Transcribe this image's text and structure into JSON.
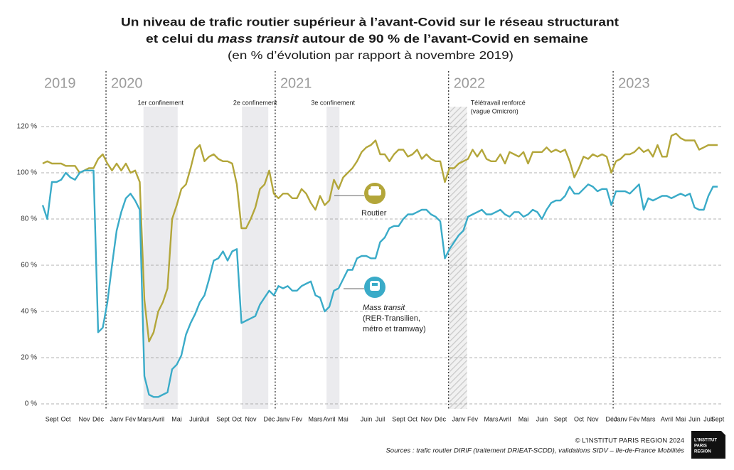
{
  "chart_data": {
    "type": "line",
    "title": "Un niveau de trafic routier supérieur à l’avant-Covid sur le réseau structurant",
    "title_line2": [
      "et celui du ",
      "mass transit",
      " autour de 90 % de l’avant-Covid en semaine"
    ],
    "subtitle": "(en % d’évolution par rapport à novembre 2019)",
    "categories": [
      null,
      null,
      "Sept",
      null,
      null,
      "Oct",
      null,
      null,
      null,
      "Nov",
      null,
      null,
      "Déc",
      null,
      null,
      null,
      "Janv",
      null,
      null,
      "Fév",
      null,
      null,
      "Mars",
      null,
      null,
      "Avril",
      null,
      null,
      null,
      "Mai",
      null,
      null,
      null,
      "Juin",
      null,
      "Juil",
      null,
      null,
      null,
      "Sept",
      null,
      null,
      "Oct",
      null,
      null,
      "Nov",
      null,
      null,
      null,
      "Déc",
      null,
      null,
      "Janv",
      null,
      null,
      "Fév",
      null,
      null,
      null,
      "Mars",
      null,
      null,
      "Avril",
      null,
      null,
      "Mai",
      null,
      null,
      null,
      null,
      "Juin",
      null,
      null,
      "Juil",
      null,
      null,
      null,
      "Sept",
      null,
      null,
      "Oct",
      null,
      null,
      "Nov",
      null,
      null,
      "Déc",
      null,
      null,
      null,
      "Janv",
      null,
      null,
      "Fév",
      null,
      null,
      null,
      "Mars",
      null,
      null,
      "Avril",
      null,
      null,
      null,
      "Mai",
      null,
      null,
      null,
      "Juin",
      null,
      null,
      null,
      "Sept",
      null,
      null,
      null,
      "Oct",
      null,
      null,
      "Nov",
      null,
      null,
      null,
      "Déc",
      null,
      "Janv",
      null,
      null,
      "Fév",
      null,
      null,
      "Mars",
      null,
      null,
      null,
      "Avril",
      null,
      null,
      "Mai",
      null,
      null,
      "Juin",
      null,
      null,
      "Juil",
      null,
      "Sept"
    ],
    "series": [
      {
        "name": "Routier",
        "color": "#b3a63a",
        "values": [
          104,
          105,
          104,
          104,
          104,
          103,
          103,
          103,
          100,
          101,
          102,
          102,
          106,
          108,
          104,
          101,
          104,
          101,
          104,
          100,
          101,
          96,
          45,
          27,
          31,
          40,
          44,
          50,
          80,
          86,
          93,
          95,
          102,
          110,
          112,
          105,
          107,
          108,
          106,
          105,
          105,
          104,
          95,
          76,
          76,
          80,
          85,
          93,
          95,
          101,
          91,
          89,
          91,
          91,
          89,
          89,
          93,
          91,
          87,
          84,
          90,
          86,
          88,
          97,
          93,
          98,
          100,
          102,
          105,
          109,
          111,
          112,
          114,
          108,
          108,
          105,
          108,
          110,
          110,
          107,
          108,
          110,
          106,
          108,
          106,
          105,
          105,
          96,
          102,
          102,
          104,
          105,
          106,
          110,
          107,
          110,
          106,
          105,
          105,
          108,
          104,
          109,
          108,
          107,
          109,
          104,
          109,
          109,
          109,
          111,
          109,
          110,
          109,
          110,
          105,
          98,
          102,
          107,
          106,
          108,
          107,
          108,
          107,
          100,
          105,
          106,
          108,
          108,
          109,
          111,
          109,
          110,
          107,
          112,
          107,
          107,
          116,
          117,
          115,
          114,
          114,
          114,
          110,
          111,
          112,
          112,
          112
        ]
      },
      {
        "name": "Mass transit",
        "description": [
          "(RER-Transilien,",
          "métro et tramway)"
        ],
        "color": "#3aabc8",
        "values": [
          86,
          80,
          96,
          96,
          97,
          100,
          98,
          97,
          100,
          101,
          101,
          101,
          31,
          33,
          44,
          60,
          75,
          83,
          89,
          91,
          88,
          84,
          12,
          4,
          3,
          3,
          4,
          5,
          15,
          17,
          21,
          30,
          35,
          39,
          44,
          47,
          54,
          62,
          63,
          66,
          62,
          66,
          67,
          35,
          36,
          37,
          38,
          43,
          46,
          49,
          47,
          51,
          50,
          51,
          49,
          49,
          51,
          52,
          53,
          47,
          46,
          40,
          42,
          49,
          50,
          54,
          58,
          58,
          63,
          64,
          64,
          63,
          63,
          70,
          72,
          76,
          77,
          77,
          80,
          82,
          82,
          83,
          84,
          84,
          82,
          81,
          79,
          63,
          67,
          70,
          73,
          75,
          81,
          82,
          83,
          84,
          82,
          82,
          83,
          84,
          82,
          81,
          83,
          83,
          81,
          82,
          84,
          83,
          80,
          84,
          87,
          88,
          88,
          90,
          94,
          91,
          91,
          93,
          95,
          94,
          92,
          93,
          93,
          86,
          92,
          92,
          92,
          91,
          93,
          95,
          84,
          89,
          88,
          89,
          90,
          90,
          89,
          90,
          91,
          90,
          91,
          85,
          84,
          84,
          90,
          94,
          94
        ]
      }
    ],
    "ylim": [
      0,
      120
    ],
    "yticks": [
      {
        "value": 0,
        "label": "0 %"
      },
      {
        "value": 20,
        "label": "20 %"
      },
      {
        "value": 40,
        "label": "40 %"
      },
      {
        "value": 60,
        "label": "60 %"
      },
      {
        "value": 80,
        "label": "80 %"
      },
      {
        "value": 100,
        "label": "100 %"
      },
      {
        "value": 120,
        "label": "120 %"
      }
    ],
    "grid": true,
    "years": [
      {
        "label": "2019"
      },
      {
        "label": "2020",
        "x": 13.7
      },
      {
        "label": "2021",
        "x": 50.3
      },
      {
        "label": "2022",
        "x": 87.8
      },
      {
        "label": "2023",
        "x": 123.4
      }
    ],
    "spans": [
      {
        "label": [
          "1er confinement"
        ],
        "x": [
          21.8,
          29.2
        ],
        "style": "shade"
      },
      {
        "label": [
          "2e confinement"
        ],
        "x": [
          43.1,
          48.8
        ],
        "style": "shade"
      },
      {
        "label": [
          "3e confinement"
        ],
        "x": [
          61.4,
          64.2
        ],
        "style": "shade"
      },
      {
        "label": [
          "Télétravail renforcé",
          "(vague Omicron)"
        ],
        "x": [
          88,
          91.8
        ],
        "style": "hatch"
      }
    ],
    "credit": "© L’INSTITUT PARIS REGION 2024",
    "sources": "Sources :  trafic routier DIRIF (traitement DRIEAT-SCDD), validations SIDV – Ile-de-France Mobilités",
    "logo": [
      "L’INSTITUT",
      "PARIS",
      "REGION"
    ]
  }
}
